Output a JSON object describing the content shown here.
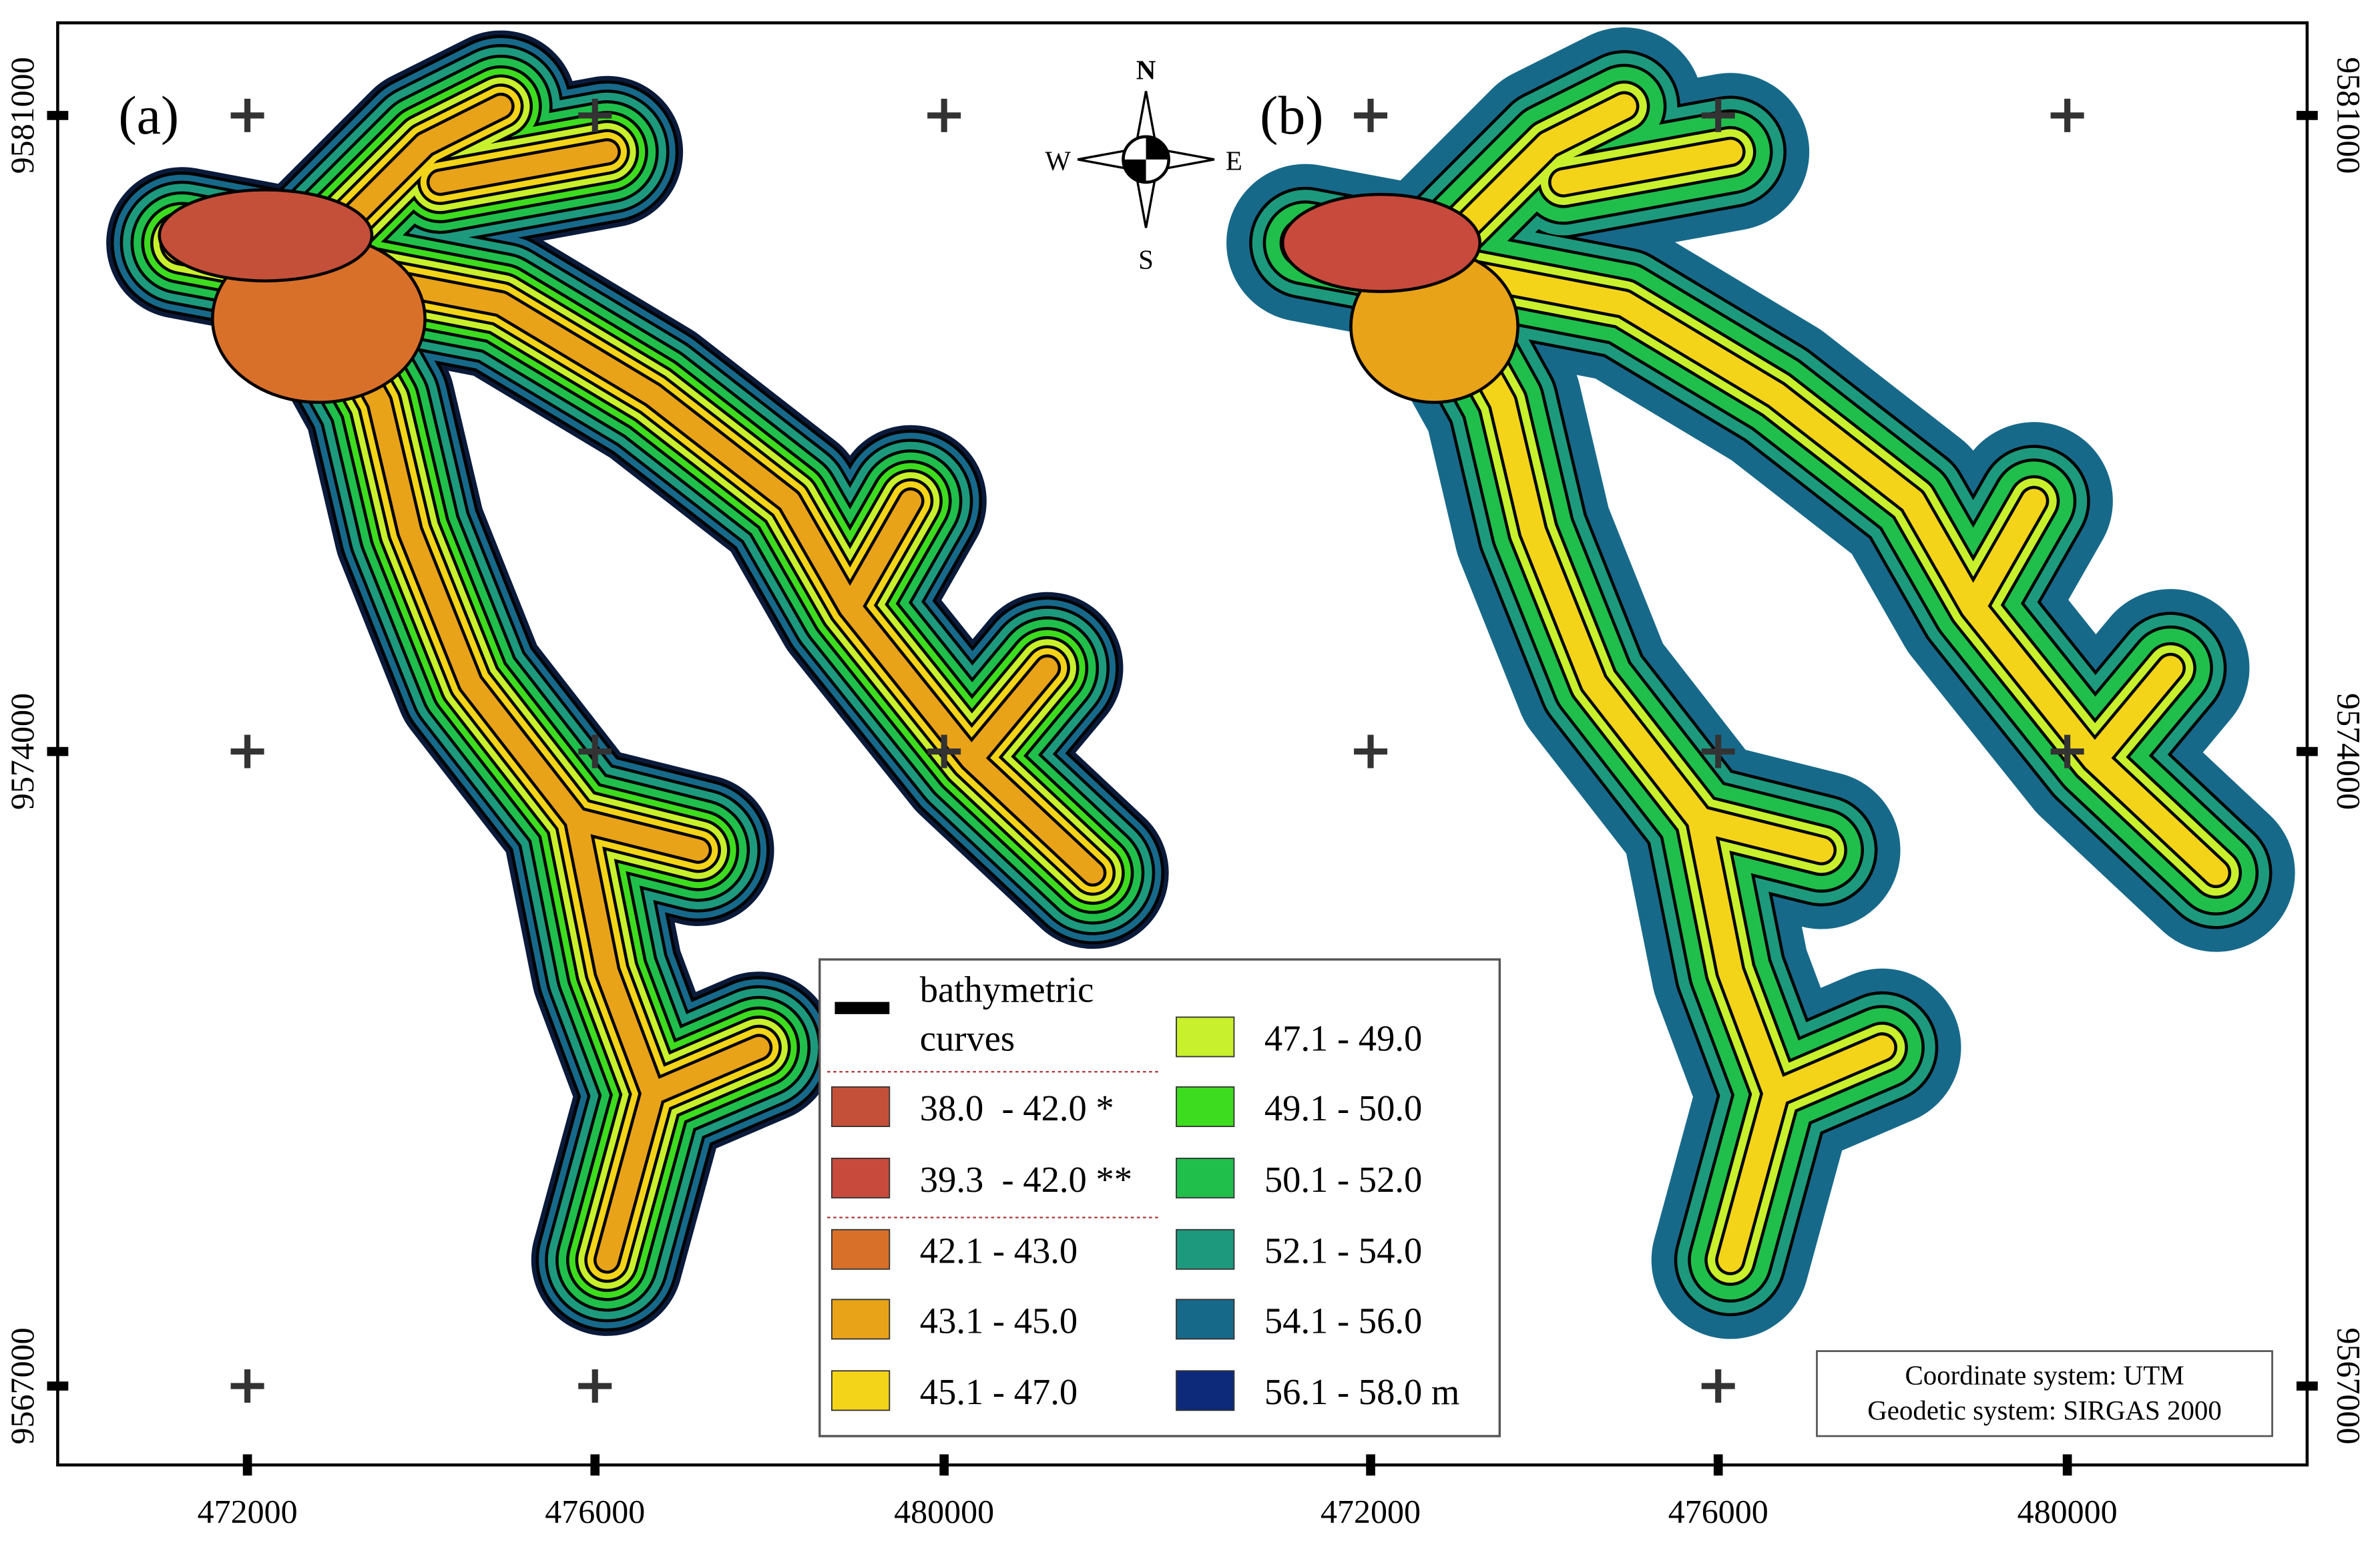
{
  "panels": [
    {
      "label": "(a)"
    },
    {
      "label": "(b)"
    }
  ],
  "x_axis": {
    "ticks": [
      "472000",
      "476000",
      "480000"
    ]
  },
  "y_axis": {
    "ticks": [
      "9581000",
      "9574000",
      "9567000"
    ]
  },
  "compass": {
    "n": "N",
    "s": "S",
    "e": "E",
    "w": "W"
  },
  "legend": {
    "curves": [
      "bathymetric",
      "curves"
    ],
    "entries": [
      {
        "label": "38.0  - 42.0 *",
        "color": "#c4503a"
      },
      {
        "label": "39.3  - 42.0 **",
        "color": "#c84a3c"
      },
      {
        "label": "42.1 - 43.0",
        "color": "#d9702a"
      },
      {
        "label": "43.1 - 45.0",
        "color": "#e9a318"
      },
      {
        "label": "45.1 - 47.0",
        "color": "#f4d418"
      },
      {
        "label": "47.1 - 49.0",
        "color": "#c9f02c"
      },
      {
        "label": "49.1 - 50.0",
        "color": "#3edc1e"
      },
      {
        "label": "50.1 - 52.0",
        "color": "#20bf4c"
      },
      {
        "label": "52.1 - 54.0",
        "color": "#1d9a7d"
      },
      {
        "label": "54.1 - 56.0",
        "color": "#17698a"
      },
      {
        "label": "56.1 - 58.0 m",
        "color": "#0d2a7a"
      }
    ]
  },
  "note": [
    "Coordinate system: UTM",
    "Geodetic system: SIRGAS 2000"
  ]
}
